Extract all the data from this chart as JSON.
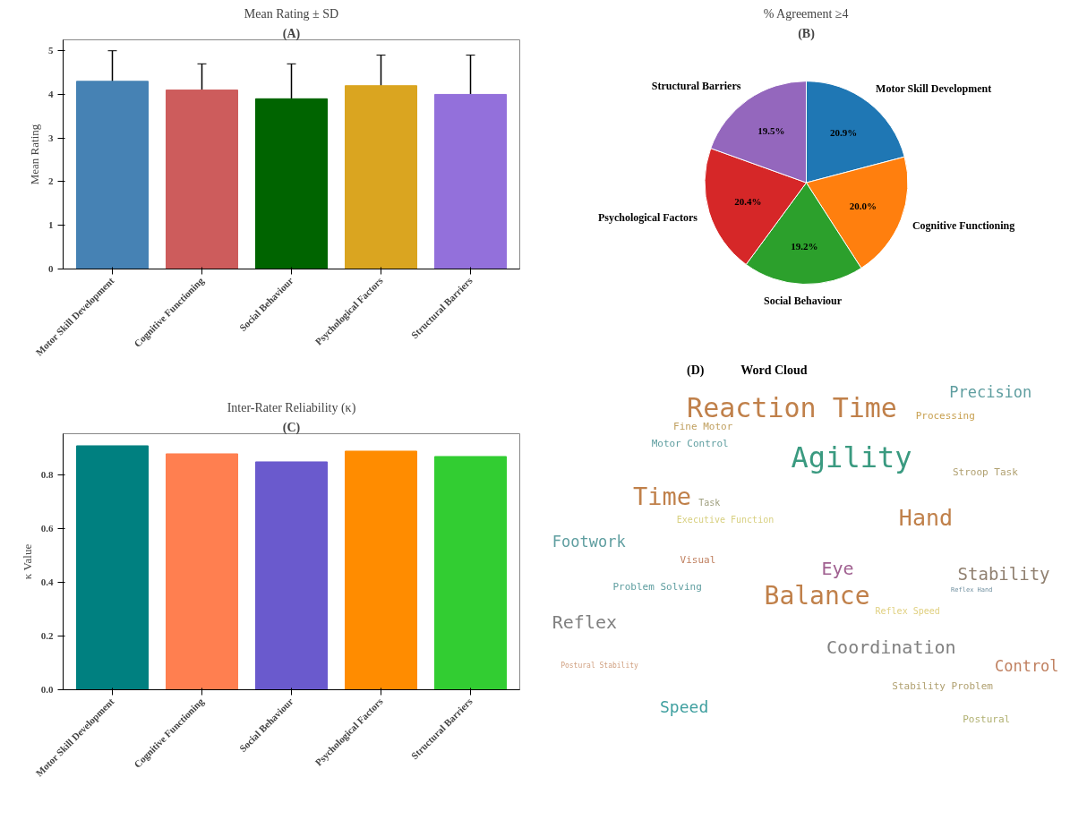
{
  "chart_data": [
    {
      "type": "bar",
      "title": "Mean Rating ± SD",
      "annotations": [
        "(A)"
      ],
      "ylabel": "Mean Rating",
      "categories": [
        "Motor Skill Development",
        "Cognitive Functioning",
        "Social Behaviour",
        "Psychological Factors",
        "Structural Barriers"
      ],
      "values": [
        4.3,
        4.1,
        3.9,
        4.2,
        4.0
      ],
      "errors": [
        0.7,
        0.6,
        0.8,
        0.7,
        0.9
      ],
      "colors": [
        "#4682b4",
        "#cd5c5c",
        "#006400",
        "#daa520",
        "#9370db"
      ],
      "ylim": [
        0,
        5.25
      ],
      "yticks": [
        0,
        1,
        2,
        3,
        4,
        5
      ],
      "grid": false
    },
    {
      "type": "pie",
      "title": "% Agreement ≥4",
      "annotations": [
        "(B)"
      ],
      "categories": [
        "Motor Skill Development",
        "Cognitive Functioning",
        "Social Behaviour",
        "Psychological Factors",
        "Structural Barriers"
      ],
      "values": [
        20.9,
        20.0,
        19.2,
        20.4,
        19.5
      ],
      "colors": [
        "#1f77b4",
        "#ff7f0e",
        "#2ca02c",
        "#d62728",
        "#9467bd"
      ],
      "value_labels": [
        "20.9%",
        "20.0%",
        "19.2%",
        "20.4%",
        "19.5%"
      ]
    },
    {
      "type": "bar",
      "title": "Inter-Rater Reliability (κ)",
      "annotations": [
        "(C)"
      ],
      "ylabel": "κ Value",
      "categories": [
        "Motor Skill Development",
        "Cognitive Functioning",
        "Social Behaviour",
        "Psychological Factors",
        "Structural Barriers"
      ],
      "values": [
        0.91,
        0.88,
        0.85,
        0.89,
        0.87
      ],
      "colors": [
        "#008080",
        "#ff7f50",
        "#6a5acd",
        "#ff8c00",
        "#32cd32"
      ],
      "ylim": [
        0,
        0.955
      ],
      "yticks": [
        {
          "value": 0,
          "label": "0.0"
        },
        0.2,
        0.4,
        0.6,
        0.8
      ],
      "grid": false
    },
    {
      "type": "other",
      "title": "Word Cloud",
      "annotations": [
        "(D)",
        "Reaction Time",
        "Precision",
        "Processing",
        "Fine Motor",
        "Motor Control",
        "Agility",
        "Stroop Task",
        "Time",
        "Task",
        "Executive Function",
        "Hand",
        "Footwork",
        "Visual",
        "Eye",
        "Stability",
        "Problem Solving",
        "Reflex Hand",
        "Balance",
        "Reflex Speed",
        "Reflex",
        "Coordination",
        "Control",
        "Postural Stability",
        "Stability Problem",
        "Speed",
        "Postural"
      ],
      "colors": [
        "#c0804a",
        "#5f9ea0",
        "#c8a050",
        "#c0a060",
        "#5f9ea0",
        "#3a9a80",
        "#b0a070",
        "#c0804a",
        "#a0a080",
        "#d8d080",
        "#c0804a",
        "#5f9ea0",
        "#c08060",
        "#a06090",
        "#908070",
        "#5f9ea0",
        "#7090a0",
        "#c0804a",
        "#e0d080",
        "#808080",
        "#808080",
        "#c08060",
        "#d0a080",
        "#b0a070",
        "#40a0a0",
        "#b0b070"
      ]
    }
  ]
}
